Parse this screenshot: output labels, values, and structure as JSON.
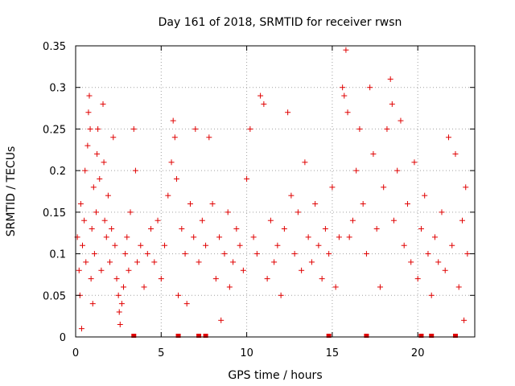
{
  "chart_data": {
    "type": "scatter",
    "title": "Day 161 of 2018, SRMTID for receiver rwsn",
    "xlabel": "GPS time / hours",
    "ylabel": "SRMTID / TECUs",
    "xlim": [
      0,
      23.33
    ],
    "ylim": [
      0,
      0.35
    ],
    "xticks": [
      0,
      5,
      10,
      15,
      20
    ],
    "xtick_labels": [
      "0",
      "5",
      "10",
      "15",
      "20"
    ],
    "yticks": [
      0,
      0.05,
      0.1,
      0.15,
      0.2,
      0.25,
      0.3,
      0.35
    ],
    "ytick_labels": [
      "0",
      "0.05",
      "0.1",
      "0.15",
      "0.2",
      "0.25",
      "0.3",
      "0.35"
    ],
    "grid": true,
    "marker": "+",
    "color": "#e00000",
    "series": [
      {
        "name": "SRMTID",
        "points": [
          [
            0.1,
            0.12
          ],
          [
            0.2,
            0.08
          ],
          [
            0.25,
            0.05
          ],
          [
            0.3,
            0.16
          ],
          [
            0.35,
            0.01
          ],
          [
            0.4,
            0.11
          ],
          [
            0.5,
            0.14
          ],
          [
            0.55,
            0.2
          ],
          [
            0.6,
            0.09
          ],
          [
            0.7,
            0.23
          ],
          [
            0.75,
            0.27
          ],
          [
            0.8,
            0.29
          ],
          [
            0.85,
            0.25
          ],
          [
            0.9,
            0.07
          ],
          [
            0.95,
            0.13
          ],
          [
            1.0,
            0.04
          ],
          [
            1.05,
            0.18
          ],
          [
            1.1,
            0.1
          ],
          [
            1.2,
            0.15
          ],
          [
            1.25,
            0.22
          ],
          [
            1.3,
            0.25
          ],
          [
            1.4,
            0.19
          ],
          [
            1.5,
            0.08
          ],
          [
            1.6,
            0.28
          ],
          [
            1.65,
            0.21
          ],
          [
            1.7,
            0.14
          ],
          [
            1.8,
            0.12
          ],
          [
            1.9,
            0.17
          ],
          [
            2.0,
            0.09
          ],
          [
            2.1,
            0.13
          ],
          [
            2.2,
            0.24
          ],
          [
            2.3,
            0.11
          ],
          [
            2.4,
            0.07
          ],
          [
            2.5,
            0.05
          ],
          [
            2.55,
            0.03
          ],
          [
            2.6,
            0.015
          ],
          [
            2.7,
            0.04
          ],
          [
            2.8,
            0.06
          ],
          [
            2.9,
            0.1
          ],
          [
            3.0,
            0.12
          ],
          [
            3.1,
            0.08
          ],
          [
            3.2,
            0.15
          ],
          [
            3.4,
            0.25
          ],
          [
            3.5,
            0.2
          ],
          [
            3.6,
            0.09
          ],
          [
            3.8,
            0.11
          ],
          [
            4.0,
            0.06
          ],
          [
            4.2,
            0.1
          ],
          [
            4.4,
            0.13
          ],
          [
            4.6,
            0.09
          ],
          [
            4.8,
            0.14
          ],
          [
            5.0,
            0.07
          ],
          [
            5.2,
            0.11
          ],
          [
            5.4,
            0.17
          ],
          [
            5.6,
            0.21
          ],
          [
            5.7,
            0.26
          ],
          [
            5.8,
            0.24
          ],
          [
            5.9,
            0.19
          ],
          [
            6.0,
            0.05
          ],
          [
            6.2,
            0.13
          ],
          [
            6.4,
            0.1
          ],
          [
            6.5,
            0.04
          ],
          [
            6.7,
            0.16
          ],
          [
            6.9,
            0.12
          ],
          [
            7.0,
            0.25
          ],
          [
            7.2,
            0.09
          ],
          [
            7.4,
            0.14
          ],
          [
            7.6,
            0.11
          ],
          [
            7.8,
            0.24
          ],
          [
            8.0,
            0.16
          ],
          [
            8.2,
            0.07
          ],
          [
            8.4,
            0.12
          ],
          [
            8.5,
            0.02
          ],
          [
            8.7,
            0.1
          ],
          [
            8.9,
            0.15
          ],
          [
            9.0,
            0.06
          ],
          [
            9.2,
            0.09
          ],
          [
            9.4,
            0.13
          ],
          [
            9.6,
            0.11
          ],
          [
            9.8,
            0.08
          ],
          [
            10.0,
            0.19
          ],
          [
            10.2,
            0.25
          ],
          [
            10.4,
            0.12
          ],
          [
            10.6,
            0.1
          ],
          [
            10.8,
            0.29
          ],
          [
            11.0,
            0.28
          ],
          [
            11.2,
            0.07
          ],
          [
            11.4,
            0.14
          ],
          [
            11.6,
            0.09
          ],
          [
            11.8,
            0.11
          ],
          [
            12.0,
            0.05
          ],
          [
            12.2,
            0.13
          ],
          [
            12.4,
            0.27
          ],
          [
            12.6,
            0.17
          ],
          [
            12.8,
            0.1
          ],
          [
            13.0,
            0.15
          ],
          [
            13.2,
            0.08
          ],
          [
            13.4,
            0.21
          ],
          [
            13.6,
            0.12
          ],
          [
            13.8,
            0.09
          ],
          [
            14.0,
            0.16
          ],
          [
            14.2,
            0.11
          ],
          [
            14.4,
            0.07
          ],
          [
            14.6,
            0.13
          ],
          [
            14.8,
            0.1
          ],
          [
            15.0,
            0.18
          ],
          [
            15.2,
            0.06
          ],
          [
            15.4,
            0.12
          ],
          [
            15.6,
            0.3
          ],
          [
            15.7,
            0.29
          ],
          [
            15.8,
            0.345
          ],
          [
            15.9,
            0.27
          ],
          [
            16.0,
            0.12
          ],
          [
            16.2,
            0.14
          ],
          [
            16.4,
            0.2
          ],
          [
            16.6,
            0.25
          ],
          [
            16.8,
            0.16
          ],
          [
            17.0,
            0.1
          ],
          [
            17.2,
            0.3
          ],
          [
            17.4,
            0.22
          ],
          [
            17.6,
            0.13
          ],
          [
            17.8,
            0.06
          ],
          [
            18.0,
            0.18
          ],
          [
            18.2,
            0.25
          ],
          [
            18.4,
            0.31
          ],
          [
            18.5,
            0.28
          ],
          [
            18.6,
            0.14
          ],
          [
            18.8,
            0.2
          ],
          [
            19.0,
            0.26
          ],
          [
            19.2,
            0.11
          ],
          [
            19.4,
            0.16
          ],
          [
            19.6,
            0.09
          ],
          [
            19.8,
            0.21
          ],
          [
            20.0,
            0.07
          ],
          [
            20.2,
            0.13
          ],
          [
            20.4,
            0.17
          ],
          [
            20.6,
            0.1
          ],
          [
            20.8,
            0.05
          ],
          [
            21.0,
            0.12
          ],
          [
            21.2,
            0.09
          ],
          [
            21.4,
            0.15
          ],
          [
            21.6,
            0.08
          ],
          [
            21.8,
            0.24
          ],
          [
            22.0,
            0.11
          ],
          [
            22.2,
            0.22
          ],
          [
            22.4,
            0.06
          ],
          [
            22.6,
            0.14
          ],
          [
            22.7,
            0.02
          ],
          [
            22.8,
            0.18
          ],
          [
            22.9,
            0.1
          ]
        ]
      }
    ],
    "gaps": [
      3.4,
      6.0,
      7.2,
      7.6,
      14.8,
      17.0,
      20.2,
      20.8,
      22.2
    ]
  }
}
